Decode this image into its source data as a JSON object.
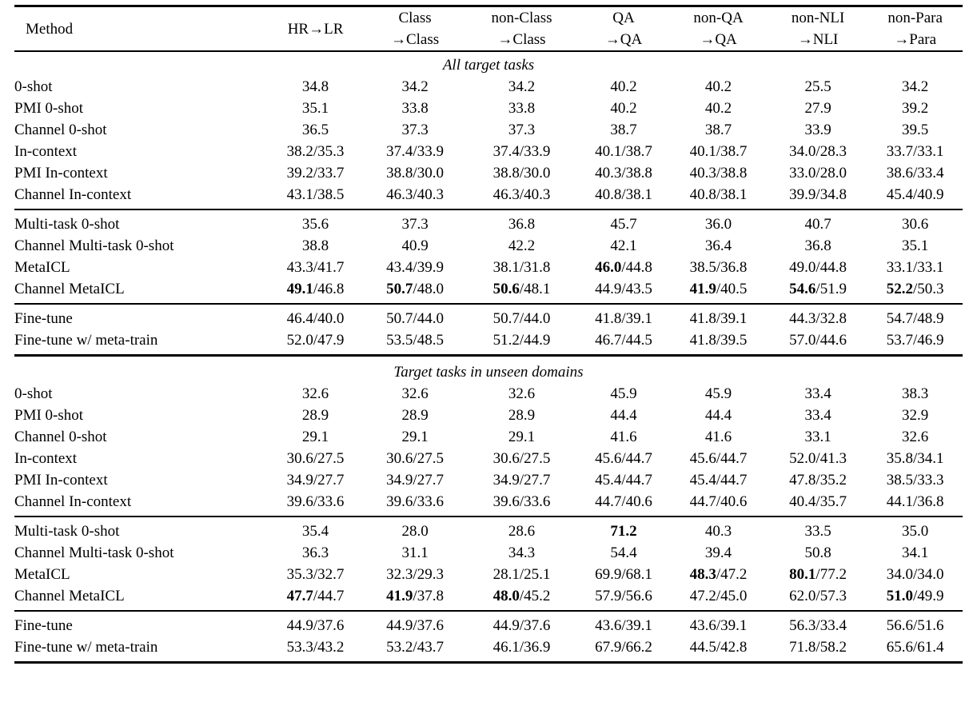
{
  "colors": {
    "text": "#000000",
    "background": "#ffffff",
    "rule": "#000000"
  },
  "table": {
    "method_header": "Method",
    "columns": [
      {
        "line1": "HR→LR",
        "line2": ""
      },
      {
        "line1": "Class",
        "line2": "→Class"
      },
      {
        "line1": "non-Class",
        "line2": "→Class"
      },
      {
        "line1": "QA",
        "line2": "→QA"
      },
      {
        "line1": "non-QA",
        "line2": "→QA"
      },
      {
        "line1": "non-NLI",
        "line2": "→NLI"
      },
      {
        "line1": "non-Para",
        "line2": "→Para"
      }
    ],
    "sections": [
      {
        "title": "All target tasks",
        "groups": [
          {
            "rows": [
              {
                "method": "0-shot",
                "values": [
                  "34.8",
                  "34.2",
                  "34.2",
                  "40.2",
                  "40.2",
                  "25.5",
                  "34.2"
                ]
              },
              {
                "method": "PMI 0-shot",
                "values": [
                  "35.1",
                  "33.8",
                  "33.8",
                  "40.2",
                  "40.2",
                  "27.9",
                  "39.2"
                ]
              },
              {
                "method": "Channel 0-shot",
                "values": [
                  "36.5",
                  "37.3",
                  "37.3",
                  "38.7",
                  "38.7",
                  "33.9",
                  "39.5"
                ]
              },
              {
                "method": "In-context",
                "values": [
                  "38.2/35.3",
                  "37.4/33.9",
                  "37.4/33.9",
                  "40.1/38.7",
                  "40.1/38.7",
                  "34.0/28.3",
                  "33.7/33.1"
                ]
              },
              {
                "method": "PMI In-context",
                "values": [
                  "39.2/33.7",
                  "38.8/30.0",
                  "38.8/30.0",
                  "40.3/38.8",
                  "40.3/38.8",
                  "33.0/28.0",
                  "38.6/33.4"
                ]
              },
              {
                "method": "Channel In-context",
                "values": [
                  "43.1/38.5",
                  "46.3/40.3",
                  "46.3/40.3",
                  "40.8/38.1",
                  "40.8/38.1",
                  "39.9/34.8",
                  "45.4/40.9"
                ]
              }
            ]
          },
          {
            "rows": [
              {
                "method": "Multi-task 0-shot",
                "values": [
                  "35.6",
                  "37.3",
                  "36.8",
                  "45.7",
                  "36.0",
                  "40.7",
                  "30.6"
                ]
              },
              {
                "method": "Channel Multi-task 0-shot",
                "values": [
                  "38.8",
                  "40.9",
                  "42.2",
                  "42.1",
                  "36.4",
                  "36.8",
                  "35.1"
                ]
              },
              {
                "method": "MetaICL",
                "values": [
                  "43.3/41.7",
                  "43.4/39.9",
                  "38.1/31.8",
                  "**46.0**/44.8",
                  "38.5/36.8",
                  "49.0/44.8",
                  "33.1/33.1"
                ]
              },
              {
                "method": "Channel MetaICL",
                "values": [
                  "**49.1**/46.8",
                  "**50.7**/48.0",
                  "**50.6**/48.1",
                  "44.9/43.5",
                  "**41.9**/40.5",
                  "**54.6**/51.9",
                  "**52.2**/50.3"
                ]
              }
            ]
          },
          {
            "rows": [
              {
                "method": "Fine-tune",
                "values": [
                  "46.4/40.0",
                  "50.7/44.0",
                  "50.7/44.0",
                  "41.8/39.1",
                  "41.8/39.1",
                  "44.3/32.8",
                  "54.7/48.9"
                ]
              },
              {
                "method": "Fine-tune w/ meta-train",
                "values": [
                  "52.0/47.9",
                  "53.5/48.5",
                  "51.2/44.9",
                  "46.7/44.5",
                  "41.8/39.5",
                  "57.0/44.6",
                  "53.7/46.9"
                ]
              }
            ]
          }
        ]
      },
      {
        "title": "Target tasks in unseen domains",
        "groups": [
          {
            "rows": [
              {
                "method": "0-shot",
                "values": [
                  "32.6",
                  "32.6",
                  "32.6",
                  "45.9",
                  "45.9",
                  "33.4",
                  "38.3"
                ]
              },
              {
                "method": "PMI 0-shot",
                "values": [
                  "28.9",
                  "28.9",
                  "28.9",
                  "44.4",
                  "44.4",
                  "33.4",
                  "32.9"
                ]
              },
              {
                "method": "Channel 0-shot",
                "values": [
                  "29.1",
                  "29.1",
                  "29.1",
                  "41.6",
                  "41.6",
                  "33.1",
                  "32.6"
                ]
              },
              {
                "method": "In-context",
                "values": [
                  "30.6/27.5",
                  "30.6/27.5",
                  "30.6/27.5",
                  "45.6/44.7",
                  "45.6/44.7",
                  "52.0/41.3",
                  "35.8/34.1"
                ]
              },
              {
                "method": "PMI In-context",
                "values": [
                  "34.9/27.7",
                  "34.9/27.7",
                  "34.9/27.7",
                  "45.4/44.7",
                  "45.4/44.7",
                  "47.8/35.2",
                  "38.5/33.3"
                ]
              },
              {
                "method": "Channel In-context",
                "values": [
                  "39.6/33.6",
                  "39.6/33.6",
                  "39.6/33.6",
                  "44.7/40.6",
                  "44.7/40.6",
                  "40.4/35.7",
                  "44.1/36.8"
                ]
              }
            ]
          },
          {
            "rows": [
              {
                "method": "Multi-task 0-shot",
                "values": [
                  "35.4",
                  "28.0",
                  "28.6",
                  "**71.2**",
                  "40.3",
                  "33.5",
                  "35.0"
                ]
              },
              {
                "method": "Channel Multi-task 0-shot",
                "values": [
                  "36.3",
                  "31.1",
                  "34.3",
                  "54.4",
                  "39.4",
                  "50.8",
                  "34.1"
                ]
              },
              {
                "method": "MetaICL",
                "values": [
                  "35.3/32.7",
                  "32.3/29.3",
                  "28.1/25.1",
                  "69.9/68.1",
                  "**48.3**/47.2",
                  "**80.1**/77.2",
                  "34.0/34.0"
                ]
              },
              {
                "method": "Channel MetaICL",
                "values": [
                  "**47.7**/44.7",
                  "**41.9**/37.8",
                  "**48.0**/45.2",
                  "57.9/56.6",
                  "47.2/45.0",
                  "62.0/57.3",
                  "**51.0**/49.9"
                ]
              }
            ]
          },
          {
            "rows": [
              {
                "method": "Fine-tune",
                "values": [
                  "44.9/37.6",
                  "44.9/37.6",
                  "44.9/37.6",
                  "43.6/39.1",
                  "43.6/39.1",
                  "56.3/33.4",
                  "56.6/51.6"
                ]
              },
              {
                "method": "Fine-tune w/ meta-train",
                "values": [
                  "53.3/43.2",
                  "53.2/43.7",
                  "46.1/36.9",
                  "67.9/66.2",
                  "44.5/42.8",
                  "71.8/58.2",
                  "65.6/61.4"
                ]
              }
            ]
          }
        ]
      }
    ]
  }
}
